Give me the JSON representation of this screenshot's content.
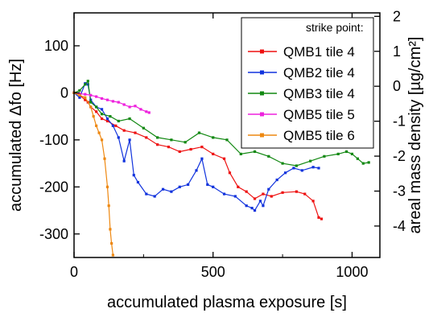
{
  "chart_data": {
    "type": "line",
    "xlabel": "accumulated plasma exposure [s]",
    "ylabel_left": "accumulated Δfo [Hz]",
    "ylabel_right": "areal mass density [µg/cm²]",
    "xlim": [
      0,
      1100
    ],
    "ylim_left": [
      -350,
      170
    ],
    "ylim_right": [
      -4.9,
      2.1
    ],
    "x_ticks": [
      {
        "v": 0,
        "label": "0"
      },
      {
        "v": 500,
        "label": "500"
      },
      {
        "v": 1000,
        "label": "1000"
      }
    ],
    "y_ticks_left": [
      {
        "v": 100,
        "label": "100"
      },
      {
        "v": 0,
        "label": "0"
      },
      {
        "v": -100,
        "label": "-100"
      },
      {
        "v": -200,
        "label": "-200"
      },
      {
        "v": -300,
        "label": "-300"
      }
    ],
    "y_ticks_right": [
      {
        "v": 2,
        "label": "2"
      },
      {
        "v": 1,
        "label": "1"
      },
      {
        "v": 0,
        "label": "0"
      },
      {
        "v": -1,
        "label": "-1"
      },
      {
        "v": -2,
        "label": "-2"
      },
      {
        "v": -3,
        "label": "-3"
      },
      {
        "v": -4,
        "label": "-4"
      }
    ],
    "legend_title": "strike point:",
    "legend_position": "top-right",
    "series": [
      {
        "name": "QMB1 tile 4",
        "color": "#ee1111",
        "x": [
          0,
          20,
          40,
          50,
          60,
          80,
          100,
          120,
          150,
          180,
          220,
          260,
          300,
          340,
          380,
          420,
          460,
          500,
          540,
          560,
          590,
          620,
          650,
          680,
          710,
          750,
          800,
          830,
          860,
          880,
          890
        ],
        "y": [
          0,
          -5,
          -15,
          -20,
          -30,
          -40,
          -55,
          -60,
          -70,
          -80,
          -85,
          -95,
          -110,
          -115,
          -125,
          -120,
          -115,
          -130,
          -140,
          -170,
          -200,
          -210,
          -225,
          -215,
          -220,
          -212,
          -210,
          -215,
          -230,
          -265,
          -268
        ]
      },
      {
        "name": "QMB2 tile 4",
        "color": "#1133dd",
        "x": [
          0,
          20,
          40,
          50,
          60,
          80,
          100,
          120,
          140,
          160,
          180,
          200,
          215,
          230,
          260,
          290,
          320,
          350,
          380,
          410,
          440,
          460,
          480,
          500,
          540,
          580,
          620,
          640,
          650,
          670,
          680,
          700,
          730,
          760,
          790,
          820,
          860,
          880
        ],
        "y": [
          0,
          -10,
          20,
          18,
          -15,
          -30,
          -35,
          -55,
          -70,
          -95,
          -145,
          -100,
          -175,
          -190,
          -215,
          -220,
          -205,
          -210,
          -200,
          -195,
          -165,
          -140,
          -195,
          -200,
          -215,
          -220,
          -240,
          -245,
          -250,
          -230,
          -240,
          -205,
          -185,
          -170,
          -160,
          -165,
          -158,
          -160
        ]
      },
      {
        "name": "QMB3 tile 4",
        "color": "#118811",
        "x": [
          0,
          20,
          40,
          50,
          60,
          80,
          100,
          130,
          160,
          200,
          250,
          300,
          350,
          400,
          450,
          500,
          550,
          600,
          650,
          700,
          750,
          800,
          850,
          900,
          950,
          980,
          1000,
          1020,
          1040,
          1060
        ],
        "y": [
          0,
          5,
          18,
          25,
          -20,
          -30,
          -45,
          -50,
          -60,
          -55,
          -75,
          -95,
          -100,
          -105,
          -85,
          -95,
          -100,
          -130,
          -125,
          -135,
          -150,
          -155,
          -145,
          -135,
          -130,
          -125,
          -130,
          -140,
          -150,
          -148
        ]
      },
      {
        "name": "QMB5 tile 5",
        "color": "#ee22dd",
        "x": [
          0,
          20,
          40,
          60,
          80,
          100,
          120,
          140,
          160,
          180,
          200,
          220,
          240,
          260,
          270
        ],
        "y": [
          0,
          -2,
          -3,
          -5,
          -8,
          -12,
          -15,
          -18,
          -20,
          -25,
          -30,
          -28,
          -35,
          -40,
          -42
        ]
      },
      {
        "name": "QMB5 tile 6",
        "color": "#ee8811",
        "x": [
          0,
          20,
          40,
          60,
          70,
          80,
          90,
          100,
          110,
          120,
          125,
          130,
          135,
          140
        ],
        "y": [
          0,
          -5,
          -10,
          -30,
          -50,
          -70,
          -85,
          -100,
          -140,
          -200,
          -240,
          -290,
          -320,
          -345
        ]
      }
    ]
  }
}
